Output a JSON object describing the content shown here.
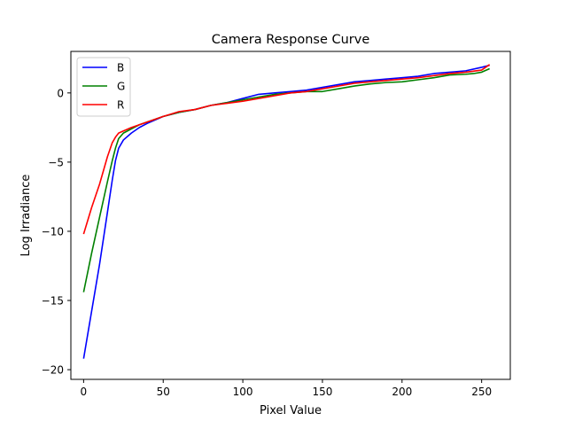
{
  "chart_data": {
    "type": "line",
    "title": "Camera Response Curve",
    "xlabel": "Pixel Value",
    "ylabel": "Log Irradiance",
    "xlim": [
      -8,
      268
    ],
    "ylim": [
      -20.7,
      3.0
    ],
    "xticks": [
      0,
      50,
      100,
      150,
      200,
      250
    ],
    "yticks": [
      -20,
      -15,
      -10,
      -5,
      0
    ],
    "xtick_labels": [
      "0",
      "50",
      "100",
      "150",
      "200",
      "250"
    ],
    "ytick_labels": [
      "−20",
      "−15",
      "−10",
      "−5",
      "0"
    ],
    "grid": false,
    "legend_position": "top-left",
    "series": [
      {
        "name": "B",
        "color": "#0000ff",
        "x": [
          0,
          5,
          10,
          15,
          18,
          20,
          22,
          25,
          30,
          35,
          40,
          50,
          60,
          70,
          80,
          90,
          100,
          110,
          120,
          130,
          140,
          150,
          160,
          170,
          180,
          190,
          200,
          210,
          220,
          230,
          240,
          250,
          255
        ],
        "y": [
          -19.2,
          -15.8,
          -12.4,
          -8.6,
          -6.3,
          -4.9,
          -4.0,
          -3.4,
          -2.9,
          -2.5,
          -2.2,
          -1.7,
          -1.4,
          -1.2,
          -0.9,
          -0.7,
          -0.4,
          -0.1,
          0.0,
          0.1,
          0.2,
          0.4,
          0.6,
          0.8,
          0.9,
          1.0,
          1.1,
          1.2,
          1.4,
          1.5,
          1.6,
          1.85,
          2.0
        ]
      },
      {
        "name": "G",
        "color": "#008000",
        "x": [
          0,
          5,
          10,
          15,
          18,
          20,
          22,
          25,
          30,
          35,
          40,
          50,
          60,
          70,
          80,
          90,
          100,
          110,
          120,
          130,
          140,
          150,
          160,
          170,
          180,
          190,
          200,
          210,
          220,
          230,
          240,
          245,
          250,
          255
        ],
        "y": [
          -14.4,
          -11.6,
          -9.0,
          -6.4,
          -4.9,
          -4.0,
          -3.3,
          -2.9,
          -2.6,
          -2.3,
          -2.1,
          -1.7,
          -1.4,
          -1.2,
          -0.9,
          -0.7,
          -0.5,
          -0.3,
          -0.1,
          0.0,
          0.1,
          0.1,
          0.3,
          0.5,
          0.65,
          0.75,
          0.8,
          0.95,
          1.1,
          1.3,
          1.35,
          1.4,
          1.5,
          1.75
        ]
      },
      {
        "name": "R",
        "color": "#ff0000",
        "x": [
          0,
          5,
          10,
          15,
          18,
          20,
          22,
          25,
          30,
          35,
          40,
          50,
          60,
          70,
          80,
          90,
          100,
          110,
          120,
          130,
          140,
          150,
          160,
          170,
          180,
          190,
          200,
          210,
          220,
          230,
          240,
          250,
          255
        ],
        "y": [
          -10.2,
          -8.3,
          -6.6,
          -4.6,
          -3.6,
          -3.2,
          -2.9,
          -2.75,
          -2.5,
          -2.3,
          -2.1,
          -1.7,
          -1.35,
          -1.2,
          -0.9,
          -0.75,
          -0.6,
          -0.4,
          -0.2,
          0.0,
          0.1,
          0.3,
          0.5,
          0.7,
          0.8,
          0.9,
          1.0,
          1.1,
          1.25,
          1.4,
          1.5,
          1.65,
          2.05
        ]
      }
    ]
  }
}
